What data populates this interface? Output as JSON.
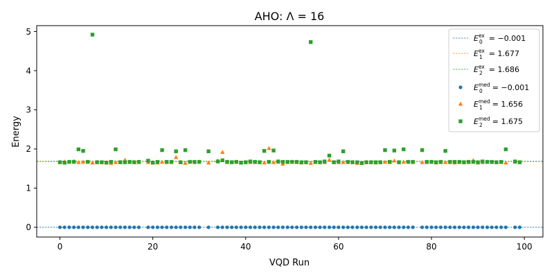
{
  "chart_data": {
    "type": "scatter",
    "title": "AHO: Λ = 16",
    "xlabel": "VQD Run",
    "ylabel": "Energy",
    "xlim": [
      -5,
      104
    ],
    "ylim": [
      -0.25,
      5.15
    ],
    "xticks": [
      0,
      20,
      40,
      60,
      80,
      100
    ],
    "yticks": [
      0,
      1,
      2,
      3,
      4,
      5
    ],
    "grid": false,
    "legend_position": "top-right",
    "reference_lines": [
      {
        "name": "E0ex",
        "label_base": "E",
        "sub": "0",
        "sup": "ex",
        "value_text": "= −0.001",
        "y": -0.001,
        "color": "#1f77b4"
      },
      {
        "name": "E1ex",
        "label_base": "E",
        "sub": "1",
        "sup": "ex",
        "value_text": "= 1.677",
        "y": 1.677,
        "color": "#ff7f0e"
      },
      {
        "name": "E2ex",
        "label_base": "E",
        "sub": "2",
        "sup": "ex",
        "value_text": "= 1.686",
        "y": 1.686,
        "color": "#2ca02c"
      }
    ],
    "series": [
      {
        "name": "E0med",
        "label_base": "E",
        "sub": "0",
        "sup": "med",
        "value_text": "= −0.001",
        "marker": "circle",
        "color": "#1f77b4",
        "x": [
          0,
          1,
          2,
          3,
          4,
          5,
          6,
          7,
          8,
          9,
          10,
          11,
          12,
          13,
          14,
          15,
          16,
          17,
          19,
          20,
          21,
          22,
          23,
          24,
          25,
          26,
          27,
          28,
          29,
          30,
          32,
          34,
          35,
          36,
          37,
          38,
          39,
          40,
          41,
          42,
          43,
          44,
          45,
          46,
          47,
          48,
          49,
          50,
          51,
          52,
          53,
          54,
          55,
          56,
          57,
          58,
          59,
          60,
          61,
          62,
          63,
          64,
          65,
          66,
          67,
          68,
          69,
          70,
          71,
          72,
          73,
          74,
          75,
          76,
          78,
          79,
          80,
          81,
          82,
          83,
          84,
          85,
          86,
          87,
          88,
          89,
          90,
          91,
          92,
          93,
          94,
          95,
          96,
          98,
          99
        ],
        "y": [
          -0.001,
          -0.001,
          -0.001,
          -0.001,
          -0.001,
          -0.001,
          -0.001,
          -0.001,
          -0.001,
          -0.001,
          -0.001,
          -0.001,
          -0.001,
          -0.001,
          -0.001,
          -0.001,
          -0.001,
          -0.001,
          -0.001,
          -0.001,
          -0.001,
          -0.001,
          -0.001,
          -0.001,
          -0.001,
          -0.001,
          -0.001,
          -0.001,
          -0.001,
          -0.001,
          -0.001,
          -0.001,
          -0.001,
          -0.001,
          -0.001,
          -0.001,
          -0.001,
          -0.001,
          -0.001,
          -0.001,
          -0.001,
          -0.001,
          -0.001,
          -0.001,
          -0.001,
          -0.001,
          -0.001,
          -0.001,
          -0.001,
          -0.001,
          -0.001,
          -0.001,
          -0.001,
          -0.001,
          -0.001,
          -0.001,
          -0.001,
          -0.001,
          -0.001,
          -0.001,
          -0.001,
          -0.001,
          -0.001,
          -0.001,
          -0.001,
          -0.001,
          -0.001,
          -0.001,
          -0.001,
          -0.001,
          -0.001,
          -0.001,
          -0.001,
          -0.001,
          -0.001,
          -0.001,
          -0.001,
          -0.001,
          -0.001,
          -0.001,
          -0.001,
          -0.001,
          -0.001,
          -0.001,
          -0.001,
          -0.001,
          -0.001,
          -0.001,
          -0.001,
          -0.001,
          -0.001,
          -0.001,
          -0.001,
          -0.001,
          -0.001
        ]
      },
      {
        "name": "E1med",
        "label_base": "E",
        "sub": "1",
        "sup": "med",
        "value_text": "= 1.656",
        "marker": "triangle",
        "color": "#ff7f0e",
        "x": [
          0,
          1,
          2,
          3,
          4,
          5,
          6,
          7,
          8,
          9,
          10,
          11,
          12,
          13,
          14,
          15,
          16,
          17,
          19,
          20,
          21,
          22,
          23,
          24,
          25,
          26,
          27,
          28,
          29,
          30,
          32,
          34,
          35,
          36,
          37,
          38,
          39,
          40,
          41,
          42,
          43,
          44,
          45,
          46,
          47,
          48,
          49,
          50,
          51,
          52,
          53,
          54,
          55,
          56,
          57,
          58,
          59,
          60,
          61,
          62,
          63,
          64,
          65,
          66,
          67,
          68,
          69,
          70,
          71,
          72,
          73,
          74,
          75,
          76,
          78,
          79,
          80,
          81,
          82,
          83,
          84,
          85,
          86,
          87,
          88,
          89,
          90,
          91,
          92,
          93,
          94,
          95,
          96,
          98,
          99
        ],
        "y": [
          1.66,
          1.68,
          1.67,
          1.69,
          1.66,
          1.67,
          1.67,
          1.65,
          1.67,
          1.66,
          1.66,
          1.64,
          1.66,
          1.67,
          1.72,
          1.66,
          1.67,
          1.66,
          1.66,
          1.66,
          1.65,
          1.67,
          1.66,
          1.66,
          1.79,
          1.66,
          1.64,
          1.67,
          1.66,
          1.67,
          1.65,
          1.7,
          1.92,
          1.66,
          1.66,
          1.67,
          1.65,
          1.66,
          1.66,
          1.66,
          1.66,
          1.65,
          2.02,
          1.66,
          1.67,
          1.62,
          1.66,
          1.67,
          1.66,
          1.65,
          1.66,
          1.64,
          1.66,
          1.66,
          1.66,
          1.72,
          1.66,
          1.66,
          1.66,
          1.66,
          1.67,
          1.64,
          1.65,
          1.66,
          1.66,
          1.65,
          1.66,
          1.67,
          1.66,
          1.7,
          1.66,
          1.67,
          1.67,
          1.66,
          1.66,
          1.66,
          1.67,
          1.65,
          1.66,
          1.66,
          1.66,
          1.65,
          1.66,
          1.66,
          1.66,
          1.71,
          1.65,
          1.66,
          1.67,
          1.66,
          1.66,
          1.66,
          1.65,
          1.67,
          1.66
        ]
      },
      {
        "name": "E2med",
        "label_base": "E",
        "sub": "2",
        "sup": "med",
        "value_text": "= 1.675",
        "marker": "square",
        "color": "#2ca02c",
        "x": [
          0,
          1,
          2,
          3,
          4,
          5,
          6,
          7,
          8,
          9,
          10,
          11,
          12,
          13,
          14,
          15,
          16,
          17,
          19,
          20,
          21,
          22,
          23,
          24,
          25,
          26,
          27,
          28,
          29,
          30,
          32,
          34,
          35,
          36,
          37,
          38,
          39,
          40,
          41,
          42,
          43,
          44,
          45,
          46,
          47,
          48,
          49,
          50,
          51,
          52,
          53,
          54,
          55,
          56,
          57,
          58,
          59,
          60,
          61,
          62,
          63,
          64,
          65,
          66,
          67,
          68,
          69,
          70,
          71,
          72,
          73,
          74,
          75,
          76,
          78,
          79,
          80,
          81,
          82,
          83,
          84,
          85,
          86,
          87,
          88,
          89,
          90,
          91,
          92,
          93,
          94,
          95,
          96,
          98,
          99
        ],
        "y": [
          1.66,
          1.65,
          1.67,
          1.67,
          1.99,
          1.95,
          1.67,
          4.92,
          1.66,
          1.66,
          1.65,
          1.67,
          1.99,
          1.66,
          1.66,
          1.67,
          1.66,
          1.67,
          1.7,
          1.65,
          1.67,
          1.97,
          1.67,
          1.67,
          1.94,
          1.66,
          1.97,
          1.67,
          1.67,
          1.67,
          1.94,
          1.68,
          1.71,
          1.67,
          1.66,
          1.67,
          1.65,
          1.66,
          1.68,
          1.67,
          1.66,
          1.95,
          1.67,
          1.96,
          1.68,
          1.67,
          1.67,
          1.67,
          1.67,
          1.66,
          1.66,
          4.73,
          1.67,
          1.66,
          1.68,
          1.83,
          1.66,
          1.68,
          1.94,
          1.67,
          1.66,
          1.66,
          1.64,
          1.66,
          1.66,
          1.66,
          1.66,
          1.97,
          1.67,
          1.96,
          1.66,
          1.99,
          1.67,
          1.67,
          1.97,
          1.67,
          1.67,
          1.66,
          1.67,
          1.95,
          1.67,
          1.67,
          1.67,
          1.66,
          1.67,
          1.67,
          1.66,
          1.68,
          1.67,
          1.67,
          1.66,
          1.67,
          1.99,
          1.68,
          1.66
        ]
      }
    ]
  }
}
